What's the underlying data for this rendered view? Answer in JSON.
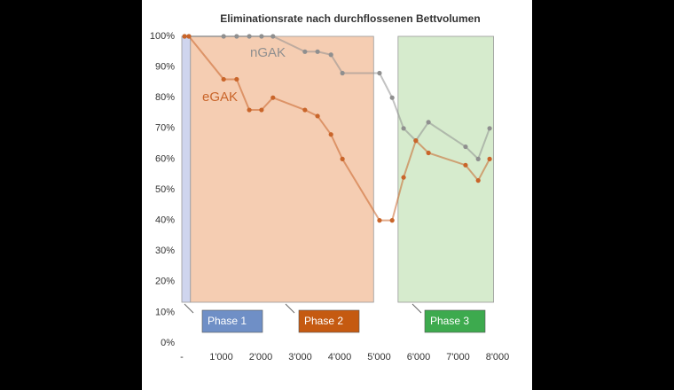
{
  "chart_data": {
    "type": "line",
    "title": "Eliminationsrate nach durchflossenen Bettvolumen",
    "x": [
      70,
      180,
      1060,
      1390,
      1710,
      2020,
      2310,
      3120,
      3440,
      3780,
      4070,
      5010,
      5330,
      5620,
      5930,
      6250,
      7190,
      7510,
      7800
    ],
    "series": [
      {
        "name": "nGAK",
        "color": "#8f8f8f",
        "values": [
          100,
          100,
          100,
          100,
          100,
          100,
          100,
          95,
          95,
          94,
          88,
          88,
          80,
          70,
          66,
          72,
          64,
          60,
          70
        ]
      },
      {
        "name": "eGAK",
        "color": "#c9652a",
        "values": [
          100,
          100,
          86,
          86,
          76,
          76,
          80,
          76,
          74,
          68,
          60,
          40,
          40,
          54,
          66,
          62,
          58,
          53,
          60
        ]
      }
    ],
    "phases": [
      {
        "label": "Phase 1",
        "start": 0,
        "end": 220,
        "color": "#6f8fc6",
        "shade": "#cfd5ee"
      },
      {
        "label": "Phase 2",
        "start": 220,
        "end": 4860,
        "color": "#c55a11",
        "shade": "#f5cdb2"
      },
      {
        "label": "Phase 3",
        "start": 5480,
        "end": 7900,
        "color": "#3daa4e",
        "shade": "#d6ebcd"
      }
    ],
    "xlim": [
      0,
      8000
    ],
    "xticks": [
      {
        "value": 0,
        "label": "-"
      },
      {
        "value": 1000,
        "label": "1'000"
      },
      {
        "value": 2000,
        "label": "2'000"
      },
      {
        "value": 3000,
        "label": "3'000"
      },
      {
        "value": 4000,
        "label": "4'000"
      },
      {
        "value": 5000,
        "label": "5'000"
      },
      {
        "value": 6000,
        "label": "6'000"
      },
      {
        "value": 7000,
        "label": "7'000"
      },
      {
        "value": 8000,
        "label": "8'000"
      }
    ],
    "ylim": [
      0,
      100
    ],
    "yticks": [
      {
        "value": 0,
        "label": "0%"
      },
      {
        "value": 10,
        "label": "10%"
      },
      {
        "value": 20,
        "label": "20%"
      },
      {
        "value": 30,
        "label": "30%"
      },
      {
        "value": 40,
        "label": "40%"
      },
      {
        "value": 50,
        "label": "50%"
      },
      {
        "value": 60,
        "label": "60%"
      },
      {
        "value": 70,
        "label": "70%"
      },
      {
        "value": 80,
        "label": "80%"
      },
      {
        "value": 90,
        "label": "90%"
      },
      {
        "value": 100,
        "label": "100%"
      }
    ]
  }
}
